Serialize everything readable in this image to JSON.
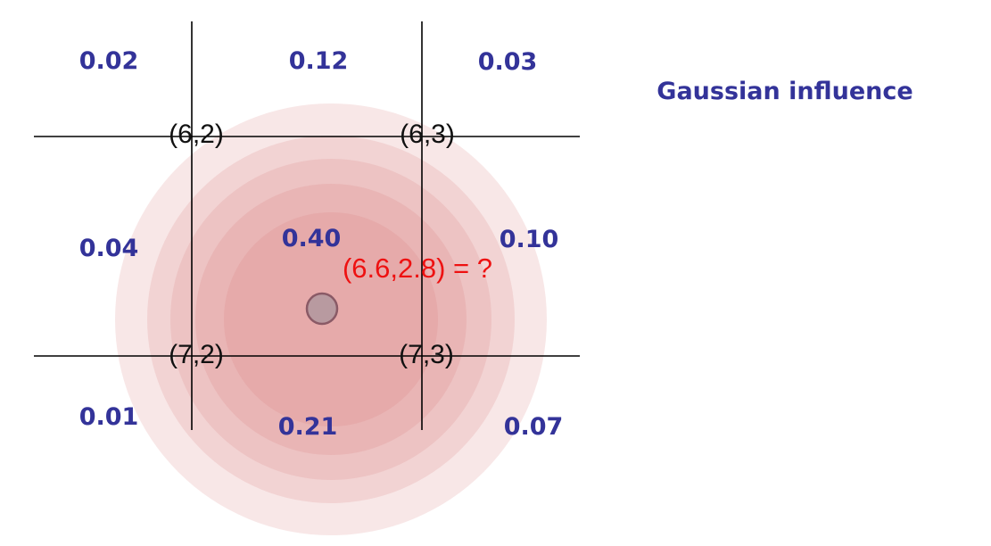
{
  "title": "Gaussian influence",
  "query_label": "(6.6,2.8) = ?",
  "grid_points": {
    "p62": "(6,2)",
    "p63": "(6,3)",
    "p72": "(7,2)",
    "p73": "(7,3)"
  },
  "cell_values": {
    "top_left": "0.02",
    "top_center": "0.12",
    "top_right": "0.03",
    "mid_left": "0.04",
    "mid_center": "0.40",
    "mid_right": "0.10",
    "bottom_left": "0.01",
    "bottom_center": "0.21",
    "bottom_right": "0.07"
  },
  "colors": {
    "value_text": "#333399",
    "query_text": "#ee1111",
    "grid_line": "#000000",
    "gaussian": "#d97a7a",
    "center_dot": "#b89aa0",
    "center_dot_stroke": "#8a5a66"
  }
}
